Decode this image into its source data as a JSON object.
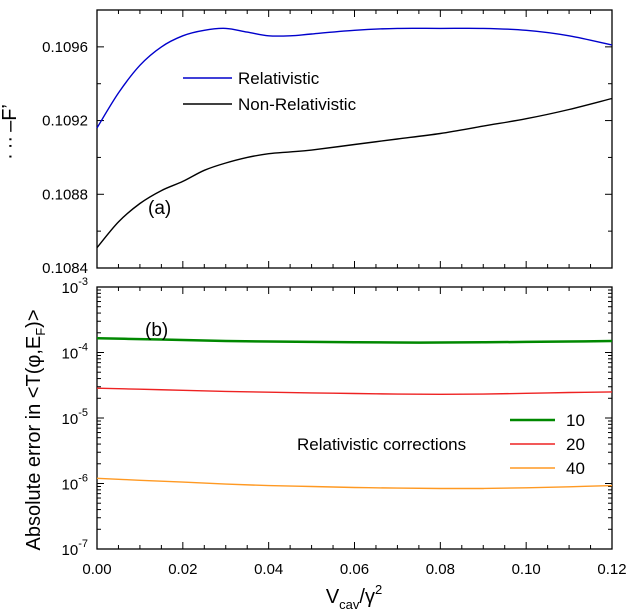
{
  "chart_data": [
    {
      "type": "line",
      "panel_label": "(a)",
      "x": [
        0.0,
        0.005,
        0.01,
        0.015,
        0.02,
        0.025,
        0.03,
        0.035,
        0.04,
        0.045,
        0.05,
        0.06,
        0.07,
        0.08,
        0.09,
        0.1,
        0.11,
        0.12
      ],
      "xlim": [
        0.0,
        0.12
      ],
      "ylim": [
        0.1084,
        0.1098
      ],
      "yticks": [
        0.1084,
        0.1088,
        0.1092,
        0.1096
      ],
      "ytick_labels": [
        "0.1084",
        "0.1088",
        "0.1092",
        "0.1096"
      ],
      "ylabel_fragment": "⟨T(φ,E_F⟩",
      "ylabel_visible_tail": "· ·· –F’",
      "series": [
        {
          "name": "Relativistic",
          "color": "#0000cc",
          "values": [
            0.10916,
            0.10935,
            0.1095,
            0.1096,
            0.10966,
            0.10969,
            0.1097,
            0.10968,
            0.10966,
            0.10966,
            0.10967,
            0.10969,
            0.1097,
            0.1097,
            0.1097,
            0.10969,
            0.10966,
            0.10961
          ]
        },
        {
          "name": "Non-Relativistic",
          "color": "#000000",
          "values": [
            0.10851,
            0.10865,
            0.10875,
            0.10882,
            0.10887,
            0.10893,
            0.10897,
            0.109,
            0.10902,
            0.10903,
            0.10904,
            0.10907,
            0.1091,
            0.10913,
            0.10917,
            0.10921,
            0.10926,
            0.10932
          ]
        }
      ],
      "legend": "top-center"
    },
    {
      "type": "line",
      "panel_label": "(b)",
      "log_y": true,
      "x": [
        0.0,
        0.01,
        0.02,
        0.03,
        0.04,
        0.05,
        0.06,
        0.07,
        0.08,
        0.09,
        0.1,
        0.11,
        0.12
      ],
      "xlim": [
        0.0,
        0.12
      ],
      "xticks": [
        0.0,
        0.02,
        0.04,
        0.06,
        0.08,
        0.1,
        0.12
      ],
      "xtick_labels": [
        "0.00",
        "0.02",
        "0.04",
        "0.06",
        "0.08",
        "0.10",
        "0.12"
      ],
      "ylim": [
        1e-07,
        0.001
      ],
      "yticks": [
        1e-07,
        1e-06,
        1e-05,
        0.0001,
        0.001
      ],
      "ytick_labels": [
        {
          "base": "10",
          "exp": "-7"
        },
        {
          "base": "10",
          "exp": "-6"
        },
        {
          "base": "10",
          "exp": "-5"
        },
        {
          "base": "10",
          "exp": "-4"
        },
        {
          "base": "10",
          "exp": "-3"
        }
      ],
      "legend_title": "Relativistic corrections",
      "series": [
        {
          "name": "10",
          "color": "#008800",
          "values": [
            0.000165,
            0.00016,
            0.000155,
            0.00015,
            0.000147,
            0.000145,
            0.000143,
            0.000142,
            0.000142,
            0.000143,
            0.000145,
            0.000147,
            0.00015
          ]
        },
        {
          "name": "20",
          "color": "#ee2222",
          "values": [
            2.85e-05,
            2.75e-05,
            2.65e-05,
            2.55e-05,
            2.48e-05,
            2.42e-05,
            2.37e-05,
            2.32e-05,
            2.3e-05,
            2.32e-05,
            2.38e-05,
            2.45e-05,
            2.5e-05
          ]
        },
        {
          "name": "40",
          "color": "#ff9922",
          "values": [
            1.2e-06,
            1.12e-06,
            1.05e-06,
            9.8e-07,
            9.3e-07,
            9e-07,
            8.7e-07,
            8.5e-07,
            8.4e-07,
            8.4e-07,
            8.6e-07,
            8.9e-07,
            9.3e-07
          ]
        }
      ],
      "legend": "right-center"
    }
  ],
  "shared_axes": {
    "ylabel_lower": {
      "main": "Absolute error in <T(φ,E",
      "sub": "F",
      "end": ")>"
    },
    "xlabel": {
      "main": "V",
      "sub": "cav",
      "mid": "/γ",
      "sup": "2"
    }
  }
}
